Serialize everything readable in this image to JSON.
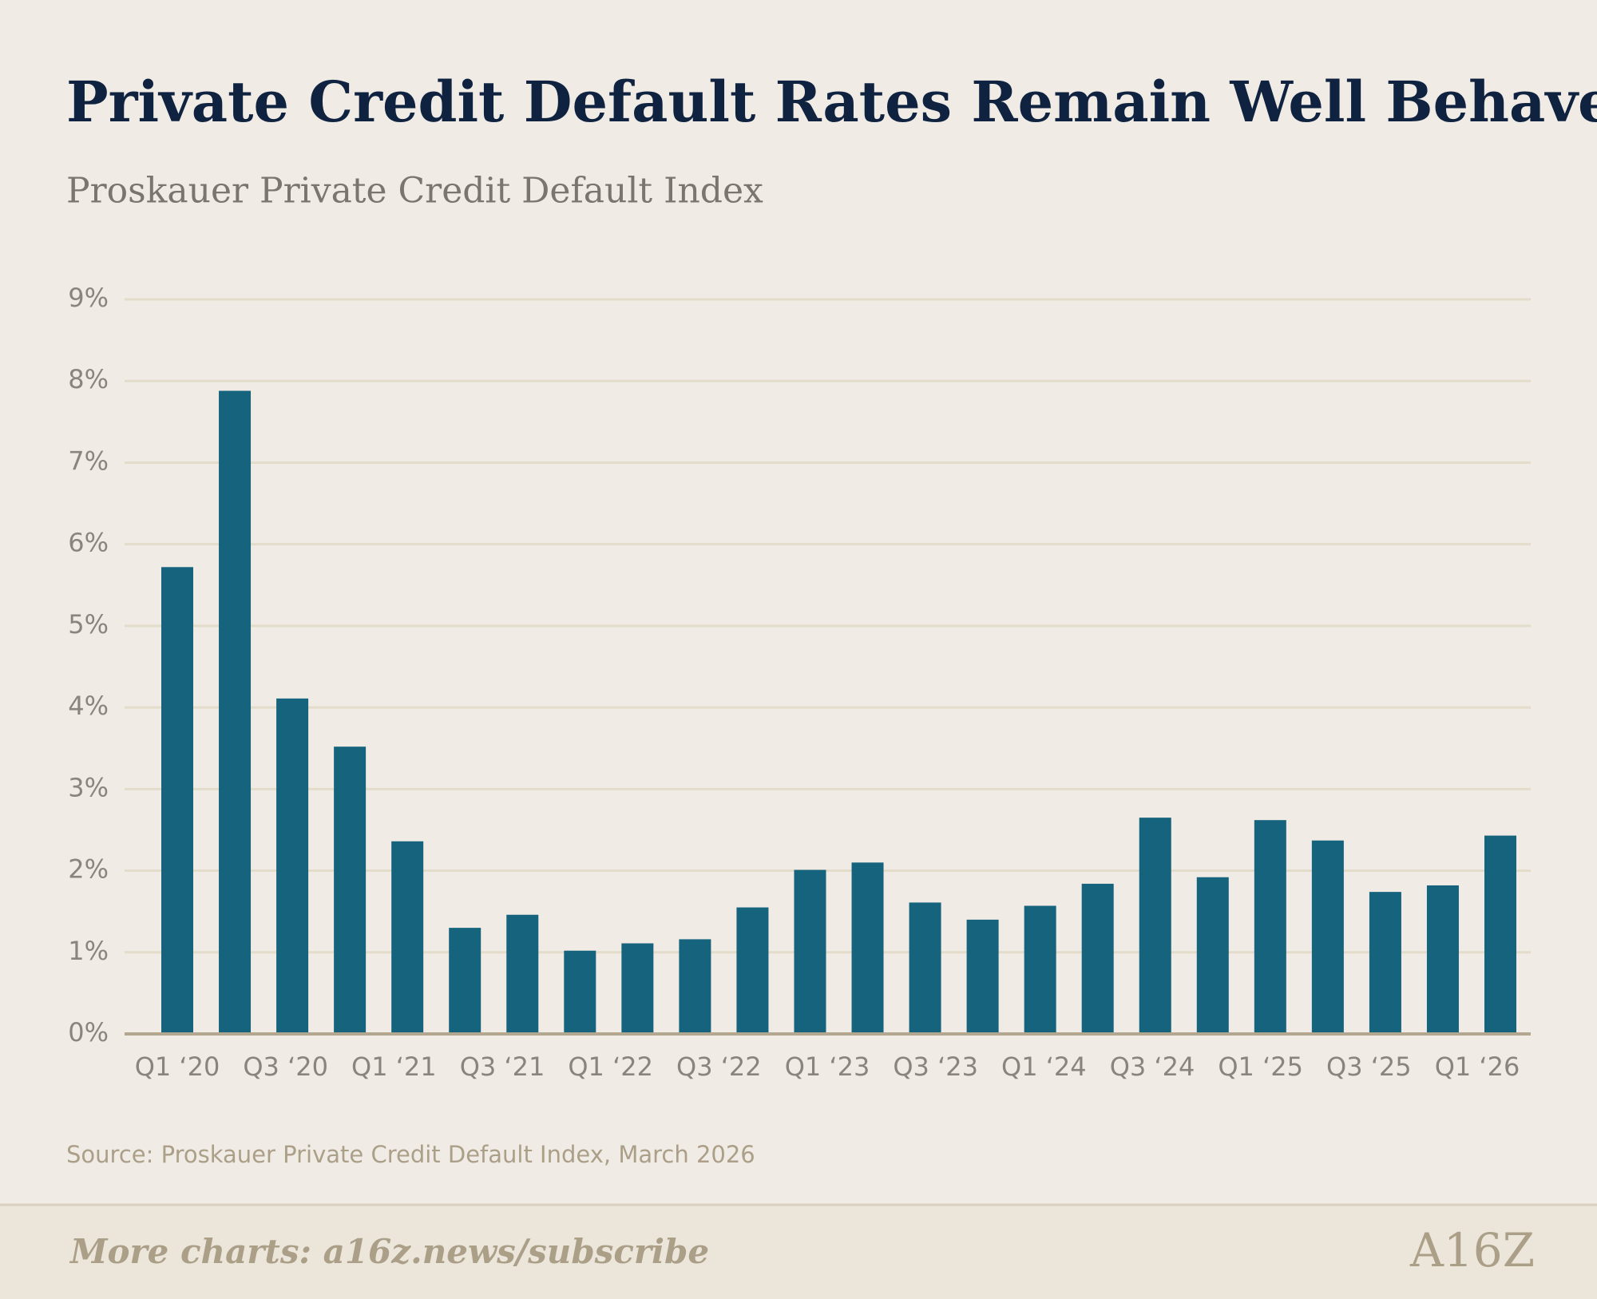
{
  "chart_data": {
    "type": "bar",
    "title": "Private Credit Default Rates Remain Well Behaved",
    "subtitle": "Proskauer Private Credit Default Index",
    "values": [
      5.72,
      7.88,
      4.11,
      3.52,
      2.36,
      1.3,
      1.46,
      1.02,
      1.11,
      1.16,
      1.55,
      2.01,
      2.1,
      1.61,
      1.4,
      1.57,
      1.84,
      2.65,
      1.92,
      2.62,
      2.37,
      1.74,
      1.82,
      2.43
    ],
    "x_labels": [
      "Q1 ‘20",
      "Q3 ‘20",
      "Q1 ‘21",
      "Q3 ‘21",
      "Q1 ‘22",
      "Q3 ‘22",
      "Q1 ‘23",
      "Q3 ‘23",
      "Q1 ‘24",
      "Q3 ‘24",
      "Q1 ‘25",
      "Q3 ‘25",
      "Q1 ‘26"
    ],
    "color": "#16637d",
    "ylim": [
      0,
      9
    ],
    "yticks": [
      {
        "value": 0,
        "label": "0%"
      },
      {
        "value": 1,
        "label": "1%"
      },
      {
        "value": 2,
        "label": "2%"
      },
      {
        "value": 3,
        "label": "3%"
      },
      {
        "value": 4,
        "label": "4%"
      },
      {
        "value": 5,
        "label": "5%"
      },
      {
        "value": 6,
        "label": "6%"
      },
      {
        "value": 7,
        "label": "7%"
      },
      {
        "value": 8,
        "label": "8%"
      },
      {
        "value": 9,
        "label": "9%"
      }
    ],
    "grid": true,
    "source": "Source: Proskauer Private Credit Default Index, March 2026",
    "footer": "More charts: a16z.news/subscribe",
    "logo": "A16Z"
  }
}
